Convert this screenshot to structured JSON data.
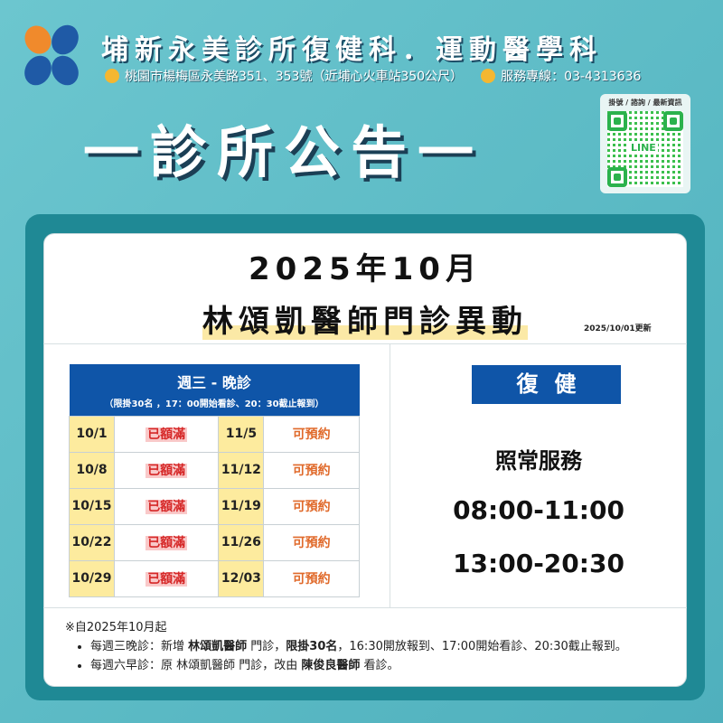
{
  "header": {
    "title": "埔新永美診所復健科．運動醫學科",
    "address": "桃園市楊梅區永美路351、353號（近埔心火車站350公尺）",
    "phone": "服務專線：03-4313636",
    "heading": "一診所公告一"
  },
  "qr": {
    "label": "掛號 / 諮詢 / 最新資訊",
    "center": "LINE"
  },
  "notice": {
    "title_line1": "2025年10月",
    "title_line2": "林頌凱醫師門診異動",
    "updated": "2025/10/01更新"
  },
  "schedule": {
    "title": "週三 - 晚診",
    "subtitle": "（限掛30名 ，17：00開始看診、20：30截止報到）",
    "rows": [
      {
        "d1": "10/1",
        "s1": "已額滿",
        "d2": "11/5",
        "s2": "可預約"
      },
      {
        "d1": "10/8",
        "s1": "已額滿",
        "d2": "11/12",
        "s2": "可預約"
      },
      {
        "d1": "10/15",
        "s1": "已額滿",
        "d2": "11/19",
        "s2": "可預約"
      },
      {
        "d1": "10/22",
        "s1": "已額滿",
        "d2": "11/26",
        "s2": "可預約"
      },
      {
        "d1": "10/29",
        "s1": "已額滿",
        "d2": "12/03",
        "s2": "可預約"
      }
    ]
  },
  "rehab": {
    "label": "復健",
    "status": "照常服務",
    "hours1": "08:00-11:00",
    "hours2": "13:00-20:30"
  },
  "notes": {
    "intro": "※自2025年10月起",
    "n1a": "每週三晚診：新增 ",
    "n1b": "林頌凱醫師",
    "n1c": " 門診，",
    "n1d": "限掛30名",
    "n1e": "，16:30開放報到、17:00開始看診、20:30截止報到。",
    "n2a": "每週六早診：原 林頌凱醫師 門診，改由 ",
    "n2b": "陳俊良醫師",
    "n2c": " 看診。"
  },
  "colors": {
    "background": "#5ab9c4",
    "frame": "#1f8995",
    "blue": "#0f55a8",
    "date_cell": "#fdeb9e",
    "full": "#d62828",
    "available": "#e06a2b"
  }
}
